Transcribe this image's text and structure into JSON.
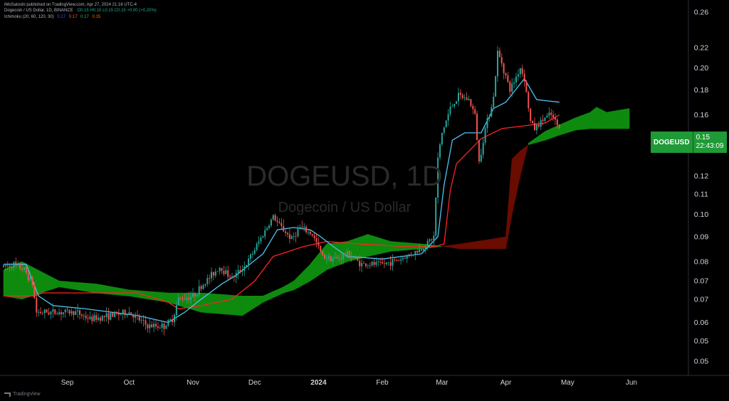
{
  "header": {
    "publisher_line": "iMoSatoshi published on TradingView.com, Apr 27, 2024 21:16 UTC-4",
    "symbol_line": "Dogecoin / US Dollar, 1D, BINANCE",
    "ohlc": "O0.15  H0.15  L0.15  C0.15  +0.00 (+0.20%)",
    "indicator_name": "Ichimoku (20, 60, 120, 30)",
    "indicator_values": [
      "0.17",
      "0.17",
      "0.17",
      "0.15"
    ]
  },
  "watermark": {
    "title": "DOGEUSD, 1D",
    "subtitle": "Dogecoin / US Dollar"
  },
  "price_tag": {
    "symbol": "DOGEUSD",
    "price": "0.15",
    "countdown": "22:43:09"
  },
  "footer": {
    "brand": "TradingView"
  },
  "colors": {
    "background": "#000000",
    "axis_text": "#d1d4dc",
    "up_candle": "#26a69a",
    "down_candle": "#ef5350",
    "conversion_line": "#4fc3f7",
    "base_line": "#ff2222",
    "cloud_bull": "#0e8a0e",
    "cloud_bear": "#6a0c00"
  },
  "chart_data": {
    "type": "candlestick",
    "title": "DOGEUSD, 1D",
    "y_scale": "log",
    "ylim": [
      0.048,
      0.27
    ],
    "y_tick_labels": [
      "0.26",
      "0.22",
      "0.20",
      "0.18",
      "0.16",
      "0.14",
      "0.12",
      "0.11",
      "0.10",
      "0.09",
      "0.08",
      "0.07",
      "0.07",
      "0.06",
      "0.05",
      "0.05"
    ],
    "y_tick_values": [
      0.26,
      0.22,
      0.2,
      0.18,
      0.16,
      0.14,
      0.12,
      0.11,
      0.1,
      0.09,
      0.08,
      0.073,
      0.067,
      0.06,
      0.055,
      0.05
    ],
    "x_range": [
      "2023-08-01",
      "2024-06-28"
    ],
    "x_tick_labels": [
      "Sep",
      "Oct",
      "Nov",
      "Dec",
      "2024",
      "Feb",
      "Mar",
      "Apr",
      "May",
      "Jun"
    ],
    "x_tick_dates": [
      "2023-09-01",
      "2023-10-01",
      "2023-11-01",
      "2023-12-01",
      "2024-01-01",
      "2024-02-01",
      "2024-03-01",
      "2024-04-01",
      "2024-05-01",
      "2024-06-01"
    ],
    "price_waypoints": [
      [
        "2023-08-01",
        0.078
      ],
      [
        "2023-08-06",
        0.079
      ],
      [
        "2023-08-11",
        0.077
      ],
      [
        "2023-08-15",
        0.072
      ],
      [
        "2023-08-17",
        0.063
      ],
      [
        "2023-08-25",
        0.063
      ],
      [
        "2023-09-05",
        0.063
      ],
      [
        "2023-09-12",
        0.061
      ],
      [
        "2023-09-22",
        0.062
      ],
      [
        "2023-10-01",
        0.063
      ],
      [
        "2023-10-10",
        0.059
      ],
      [
        "2023-10-18",
        0.059
      ],
      [
        "2023-10-22",
        0.061
      ],
      [
        "2023-10-25",
        0.067
      ],
      [
        "2023-11-01",
        0.068
      ],
      [
        "2023-11-10",
        0.075
      ],
      [
        "2023-11-14",
        0.078
      ],
      [
        "2023-11-20",
        0.074
      ],
      [
        "2023-11-27",
        0.079
      ],
      [
        "2023-12-05",
        0.091
      ],
      [
        "2023-12-10",
        0.099
      ],
      [
        "2023-12-13",
        0.095
      ],
      [
        "2023-12-19",
        0.089
      ],
      [
        "2023-12-23",
        0.094
      ],
      [
        "2023-12-29",
        0.091
      ],
      [
        "2024-01-03",
        0.082
      ],
      [
        "2024-01-10",
        0.081
      ],
      [
        "2024-01-15",
        0.083
      ],
      [
        "2024-01-22",
        0.079
      ],
      [
        "2024-02-01",
        0.079
      ],
      [
        "2024-02-10",
        0.081
      ],
      [
        "2024-02-20",
        0.085
      ],
      [
        "2024-02-26",
        0.09
      ],
      [
        "2024-02-28",
        0.13
      ],
      [
        "2024-03-01",
        0.147
      ],
      [
        "2024-03-05",
        0.165
      ],
      [
        "2024-03-09",
        0.175
      ],
      [
        "2024-03-14",
        0.172
      ],
      [
        "2024-03-17",
        0.16
      ],
      [
        "2024-03-19",
        0.128
      ],
      [
        "2024-03-22",
        0.15
      ],
      [
        "2024-03-26",
        0.174
      ],
      [
        "2024-03-28",
        0.215
      ],
      [
        "2024-03-30",
        0.205
      ],
      [
        "2024-04-03",
        0.18
      ],
      [
        "2024-04-08",
        0.2
      ],
      [
        "2024-04-10",
        0.19
      ],
      [
        "2024-04-13",
        0.155
      ],
      [
        "2024-04-15",
        0.15
      ],
      [
        "2024-04-20",
        0.158
      ],
      [
        "2024-04-23",
        0.16
      ],
      [
        "2024-04-27",
        0.15
      ]
    ],
    "conversion_line": [
      [
        "2023-08-01",
        0.079
      ],
      [
        "2023-08-12",
        0.079
      ],
      [
        "2023-08-18",
        0.068
      ],
      [
        "2023-08-25",
        0.065
      ],
      [
        "2023-09-10",
        0.064
      ],
      [
        "2023-10-05",
        0.062
      ],
      [
        "2023-10-20",
        0.06
      ],
      [
        "2023-10-28",
        0.063
      ],
      [
        "2023-11-03",
        0.066
      ],
      [
        "2023-11-15",
        0.072
      ],
      [
        "2023-11-22",
        0.075
      ],
      [
        "2023-12-05",
        0.083
      ],
      [
        "2023-12-12",
        0.093
      ],
      [
        "2023-12-20",
        0.094
      ],
      [
        "2023-12-28",
        0.093
      ],
      [
        "2024-01-02",
        0.09
      ],
      [
        "2024-01-08",
        0.086
      ],
      [
        "2024-01-15",
        0.082
      ],
      [
        "2024-02-01",
        0.081
      ],
      [
        "2024-02-20",
        0.083
      ],
      [
        "2024-02-28",
        0.09
      ],
      [
        "2024-03-02",
        0.115
      ],
      [
        "2024-03-06",
        0.142
      ],
      [
        "2024-03-12",
        0.147
      ],
      [
        "2024-03-20",
        0.147
      ],
      [
        "2024-03-26",
        0.165
      ],
      [
        "2024-04-01",
        0.17
      ],
      [
        "2024-04-10",
        0.19
      ],
      [
        "2024-04-16",
        0.172
      ],
      [
        "2024-04-27",
        0.17
      ]
    ],
    "base_line": [
      [
        "2023-08-01",
        0.068
      ],
      [
        "2023-08-16",
        0.068
      ],
      [
        "2023-08-20",
        0.069
      ],
      [
        "2023-10-05",
        0.069
      ],
      [
        "2023-10-20",
        0.066
      ],
      [
        "2023-10-25",
        0.064
      ],
      [
        "2023-11-05",
        0.065
      ],
      [
        "2023-11-20",
        0.067
      ],
      [
        "2023-12-01",
        0.073
      ],
      [
        "2023-12-10",
        0.082
      ],
      [
        "2023-12-25",
        0.086
      ],
      [
        "2024-01-05",
        0.088
      ],
      [
        "2024-01-20",
        0.087
      ],
      [
        "2024-02-10",
        0.086
      ],
      [
        "2024-02-27",
        0.086
      ],
      [
        "2024-03-02",
        0.087
      ],
      [
        "2024-03-05",
        0.112
      ],
      [
        "2024-03-08",
        0.127
      ],
      [
        "2024-03-20",
        0.143
      ],
      [
        "2024-03-30",
        0.15
      ],
      [
        "2024-04-10",
        0.152
      ],
      [
        "2024-04-20",
        0.154
      ],
      [
        "2024-04-27",
        0.16
      ]
    ],
    "cloud": {
      "span_a": [
        [
          "2023-08-01",
          0.077
        ],
        [
          "2023-08-10",
          0.08
        ],
        [
          "2023-08-20",
          0.076
        ],
        [
          "2023-08-28",
          0.073
        ],
        [
          "2023-09-15",
          0.072
        ],
        [
          "2023-10-01",
          0.07
        ],
        [
          "2023-10-20",
          0.069
        ],
        [
          "2023-11-05",
          0.069
        ],
        [
          "2023-11-25",
          0.068
        ],
        [
          "2023-12-05",
          0.068
        ],
        [
          "2023-12-15",
          0.071
        ],
        [
          "2023-12-20",
          0.073
        ],
        [
          "2023-12-28",
          0.079
        ],
        [
          "2024-01-05",
          0.087
        ],
        [
          "2024-01-15",
          0.088
        ],
        [
          "2024-01-25",
          0.091
        ],
        [
          "2024-02-05",
          0.088
        ],
        [
          "2024-02-20",
          0.087
        ],
        [
          "2024-03-01",
          0.086
        ],
        [
          "2024-03-10",
          0.085
        ],
        [
          "2024-03-25",
          0.085
        ],
        [
          "2024-04-01",
          0.085
        ],
        [
          "2024-04-04",
          0.1
        ],
        [
          "2024-04-08",
          0.12
        ],
        [
          "2024-04-12",
          0.14
        ],
        [
          "2024-04-20",
          0.148
        ],
        [
          "2024-04-26",
          0.152
        ],
        [
          "2024-05-05",
          0.158
        ],
        [
          "2024-05-12",
          0.162
        ],
        [
          "2024-05-15",
          0.166
        ],
        [
          "2024-05-20",
          0.162
        ],
        [
          "2024-05-31",
          0.165
        ]
      ],
      "span_b": [
        [
          "2023-08-01",
          0.068
        ],
        [
          "2023-08-10",
          0.067
        ],
        [
          "2023-08-28",
          0.071
        ],
        [
          "2023-09-15",
          0.069
        ],
        [
          "2023-10-01",
          0.068
        ],
        [
          "2023-10-20",
          0.066
        ],
        [
          "2023-11-05",
          0.063
        ],
        [
          "2023-11-25",
          0.062
        ],
        [
          "2023-12-05",
          0.066
        ],
        [
          "2023-12-15",
          0.069
        ],
        [
          "2023-12-20",
          0.07
        ],
        [
          "2023-12-28",
          0.073
        ],
        [
          "2024-01-05",
          0.077
        ],
        [
          "2024-01-15",
          0.08
        ],
        [
          "2024-01-25",
          0.082
        ],
        [
          "2024-02-05",
          0.084
        ],
        [
          "2024-02-20",
          0.085
        ],
        [
          "2024-03-01",
          0.086
        ],
        [
          "2024-03-10",
          0.087
        ],
        [
          "2024-03-25",
          0.089
        ],
        [
          "2024-04-01",
          0.09
        ],
        [
          "2024-04-04",
          0.13
        ],
        [
          "2024-04-08",
          0.135
        ],
        [
          "2024-04-12",
          0.139
        ],
        [
          "2024-04-20",
          0.142
        ],
        [
          "2024-04-26",
          0.145
        ],
        [
          "2024-05-05",
          0.149
        ],
        [
          "2024-05-12",
          0.15
        ],
        [
          "2024-05-15",
          0.15
        ],
        [
          "2024-05-20",
          0.15
        ],
        [
          "2024-05-31",
          0.15
        ]
      ]
    }
  }
}
